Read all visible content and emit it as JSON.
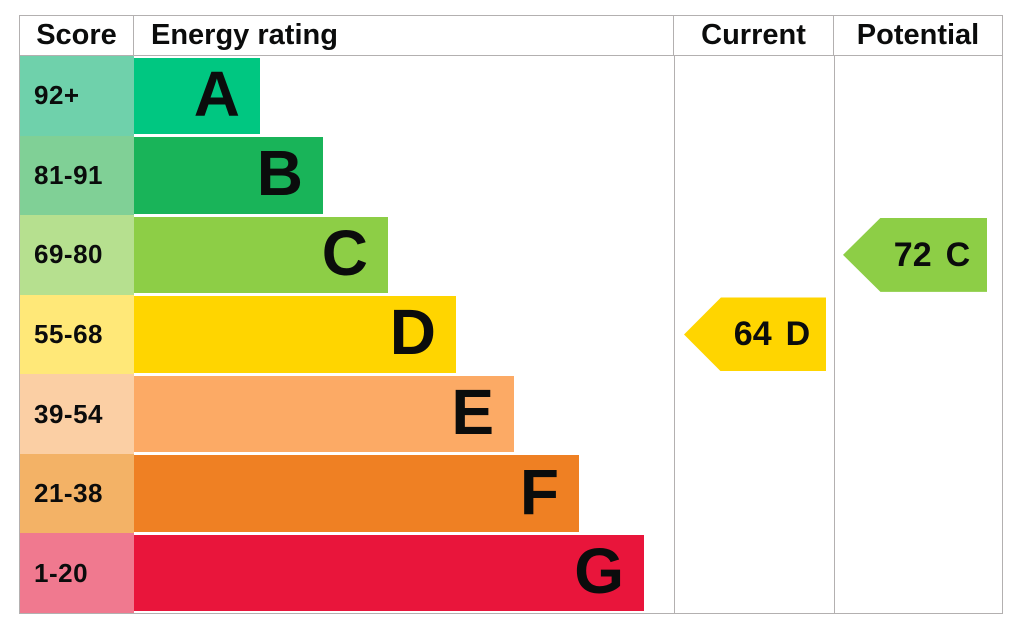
{
  "header": {
    "score": "Score",
    "rating": "Energy rating",
    "current": "Current",
    "potential": "Potential"
  },
  "chart_data": {
    "type": "bar",
    "title": "EPC energy efficiency rating chart",
    "bands": [
      {
        "letter": "A",
        "score_range": "92+",
        "bar_color": "#00c781",
        "score_color": "#6fd1ab"
      },
      {
        "letter": "B",
        "score_range": "81-91",
        "bar_color": "#19b459",
        "score_color": "#80d096"
      },
      {
        "letter": "C",
        "score_range": "69-80",
        "bar_color": "#8dce46",
        "score_color": "#b6e08f"
      },
      {
        "letter": "D",
        "score_range": "55-68",
        "bar_color": "#ffd500",
        "score_color": "#ffe878"
      },
      {
        "letter": "E",
        "score_range": "39-54",
        "bar_color": "#fcaa65",
        "score_color": "#fbcfa4"
      },
      {
        "letter": "F",
        "score_range": "21-38",
        "bar_color": "#ef8023",
        "score_color": "#f3b266"
      },
      {
        "letter": "G",
        "score_range": "1-20",
        "bar_color": "#e9153b",
        "score_color": "#f0798f"
      }
    ],
    "current": {
      "value": "64",
      "band": "D",
      "arrow_color": "#ffd500"
    },
    "potential": {
      "value": "72",
      "band": "C",
      "arrow_color": "#8dce46"
    }
  }
}
